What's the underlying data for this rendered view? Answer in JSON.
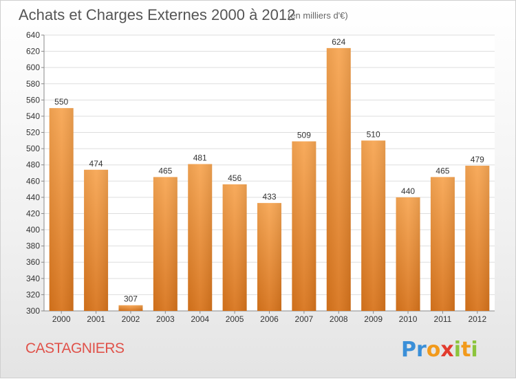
{
  "header": {
    "title": "Achats et Charges Externes 2000 à 2012",
    "unit_note": "(en milliers d'€)"
  },
  "footer": {
    "commune": "CASTAGNIERS",
    "logo_letters": [
      {
        "char": "P",
        "color": "#3a8fd8"
      },
      {
        "char": "r",
        "color": "#3a8fd8"
      },
      {
        "char": "o",
        "color": "#f29a1c"
      },
      {
        "char": "x",
        "color": "#e23b2e"
      },
      {
        "char": "i",
        "color": "#8cc43c"
      },
      {
        "char": "t",
        "color": "#f29a1c"
      },
      {
        "char": "i",
        "color": "#8cc43c"
      }
    ]
  },
  "colors": {
    "bar_top": "#f7a653",
    "bar_bottom": "#d8741c",
    "grid": "#dddddd",
    "plot_bg": "#ffffff"
  },
  "chart_data": {
    "type": "bar",
    "categories": [
      "2000",
      "2001",
      "2002",
      "2003",
      "2004",
      "2005",
      "2006",
      "2007",
      "2008",
      "2009",
      "2010",
      "2011",
      "2012"
    ],
    "values": [
      550,
      474,
      307,
      465,
      481,
      456,
      433,
      509,
      624,
      510,
      440,
      465,
      479
    ],
    "ylim": [
      300,
      640
    ],
    "yticks": [
      300,
      320,
      340,
      360,
      380,
      400,
      420,
      440,
      460,
      480,
      500,
      520,
      540,
      560,
      580,
      600,
      620,
      640
    ],
    "grid": true
  }
}
